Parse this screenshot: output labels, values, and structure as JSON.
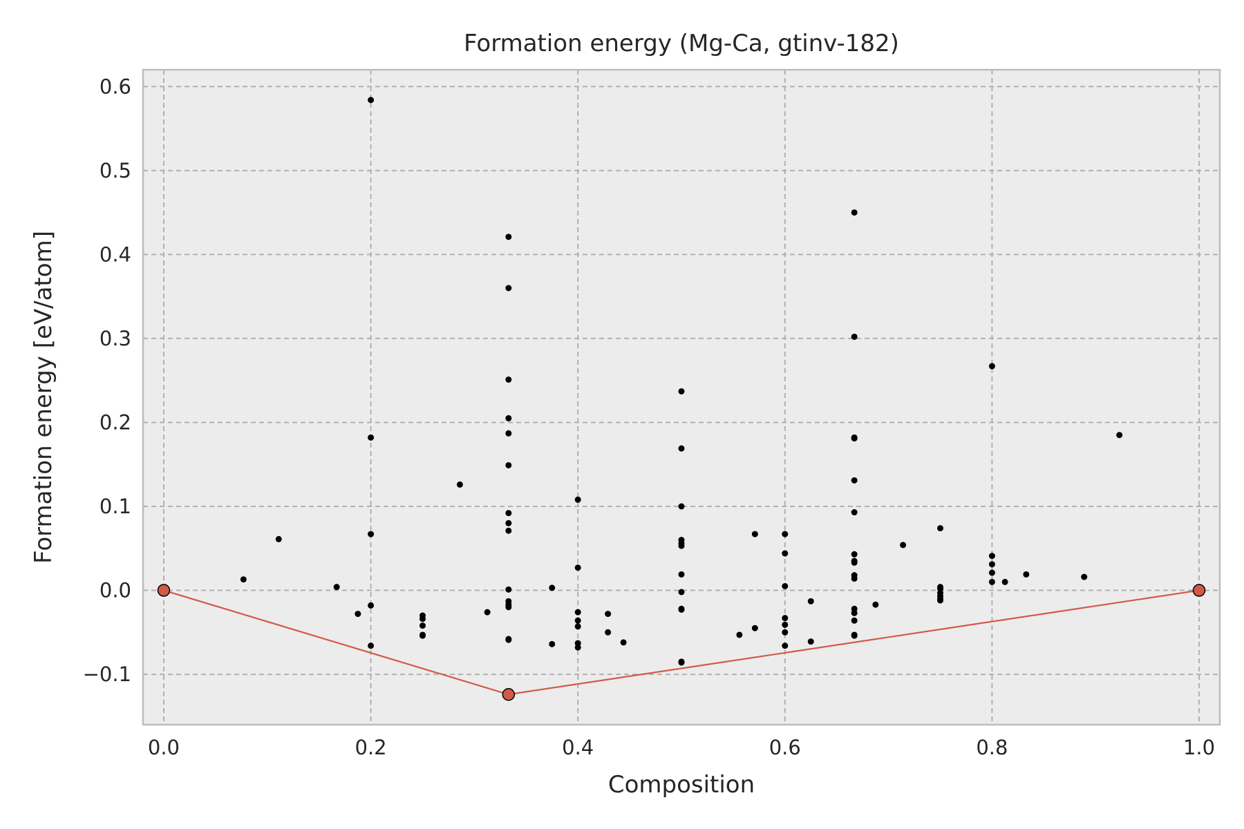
{
  "chart_data": {
    "type": "scatter",
    "title": "Formation energy (Mg-Ca, gtinv-182)",
    "xlabel": "Composition",
    "ylabel": "Formation energy [eV/atom]",
    "xlim": [
      -0.02,
      1.02
    ],
    "ylim": [
      -0.16,
      0.62
    ],
    "x_ticks": [
      0.0,
      0.2,
      0.4,
      0.6,
      0.8,
      1.0
    ],
    "x_tick_labels": [
      "0.0",
      "0.2",
      "0.4",
      "0.6",
      "0.8",
      "1.0"
    ],
    "y_ticks": [
      -0.1,
      0.0,
      0.1,
      0.2,
      0.3,
      0.4,
      0.5,
      0.6
    ],
    "y_tick_labels": [
      "−0.1",
      "0.0",
      "0.1",
      "0.2",
      "0.3",
      "0.4",
      "0.5",
      "0.6"
    ],
    "grid": true,
    "colors": {
      "background": "#ececec",
      "grid": "#b0b0b0",
      "points": "#000000",
      "hull": "#d1594a"
    },
    "series": [
      {
        "role": "structures",
        "points": [
          [
            0.077,
            0.013
          ],
          [
            0.111,
            0.061
          ],
          [
            0.167,
            0.004
          ],
          [
            0.1875,
            -0.028
          ],
          [
            0.2,
            0.584
          ],
          [
            0.2,
            0.182
          ],
          [
            0.2,
            0.067
          ],
          [
            0.2,
            -0.018
          ],
          [
            0.2,
            -0.066
          ],
          [
            0.25,
            -0.03
          ],
          [
            0.25,
            -0.034
          ],
          [
            0.25,
            -0.042
          ],
          [
            0.25,
            -0.053
          ],
          [
            0.25,
            -0.054
          ],
          [
            0.286,
            0.126
          ],
          [
            0.3125,
            -0.026
          ],
          [
            0.333,
            0.421
          ],
          [
            0.333,
            0.36
          ],
          [
            0.333,
            0.251
          ],
          [
            0.333,
            0.205
          ],
          [
            0.333,
            0.187
          ],
          [
            0.333,
            0.149
          ],
          [
            0.333,
            0.092
          ],
          [
            0.333,
            0.08
          ],
          [
            0.333,
            0.071
          ],
          [
            0.333,
            0.001
          ],
          [
            0.333,
            -0.013
          ],
          [
            0.333,
            -0.017
          ],
          [
            0.333,
            -0.02
          ],
          [
            0.333,
            -0.058
          ],
          [
            0.333,
            -0.059
          ],
          [
            0.375,
            0.003
          ],
          [
            0.375,
            -0.064
          ],
          [
            0.4,
            0.108
          ],
          [
            0.4,
            0.027
          ],
          [
            0.4,
            -0.026
          ],
          [
            0.4,
            -0.036
          ],
          [
            0.4,
            -0.043
          ],
          [
            0.4,
            -0.063
          ],
          [
            0.4,
            -0.068
          ],
          [
            0.429,
            -0.028
          ],
          [
            0.429,
            -0.05
          ],
          [
            0.444,
            -0.062
          ],
          [
            0.5,
            0.237
          ],
          [
            0.5,
            0.169
          ],
          [
            0.5,
            0.1
          ],
          [
            0.5,
            0.06
          ],
          [
            0.5,
            0.056
          ],
          [
            0.5,
            0.053
          ],
          [
            0.5,
            0.019
          ],
          [
            0.5,
            -0.002
          ],
          [
            0.5,
            -0.022
          ],
          [
            0.5,
            -0.023
          ],
          [
            0.5,
            -0.085
          ],
          [
            0.5,
            -0.086
          ],
          [
            0.556,
            -0.053
          ],
          [
            0.571,
            0.067
          ],
          [
            0.571,
            -0.045
          ],
          [
            0.6,
            0.067
          ],
          [
            0.6,
            0.044
          ],
          [
            0.6,
            0.005
          ],
          [
            0.6,
            -0.033
          ],
          [
            0.6,
            -0.041
          ],
          [
            0.6,
            -0.05
          ],
          [
            0.6,
            -0.066
          ],
          [
            0.625,
            -0.013
          ],
          [
            0.625,
            -0.061
          ],
          [
            0.667,
            0.45
          ],
          [
            0.667,
            0.302
          ],
          [
            0.667,
            0.182
          ],
          [
            0.667,
            0.181
          ],
          [
            0.667,
            0.131
          ],
          [
            0.667,
            0.093
          ],
          [
            0.667,
            0.043
          ],
          [
            0.667,
            0.035
          ],
          [
            0.667,
            0.033
          ],
          [
            0.667,
            0.018
          ],
          [
            0.667,
            0.014
          ],
          [
            0.667,
            -0.022
          ],
          [
            0.667,
            -0.027
          ],
          [
            0.667,
            -0.036
          ],
          [
            0.667,
            -0.053
          ],
          [
            0.667,
            -0.054
          ],
          [
            0.6875,
            -0.017
          ],
          [
            0.714,
            0.054
          ],
          [
            0.75,
            0.074
          ],
          [
            0.75,
            0.004
          ],
          [
            0.75,
            0.002
          ],
          [
            0.75,
            -0.003
          ],
          [
            0.75,
            -0.007
          ],
          [
            0.75,
            -0.01
          ],
          [
            0.75,
            -0.012
          ],
          [
            0.8,
            0.267
          ],
          [
            0.8,
            0.041
          ],
          [
            0.8,
            0.031
          ],
          [
            0.8,
            0.021
          ],
          [
            0.8,
            0.01
          ],
          [
            0.8125,
            0.01
          ],
          [
            0.833,
            0.019
          ],
          [
            0.889,
            0.016
          ],
          [
            0.923,
            0.185
          ]
        ]
      },
      {
        "role": "convex-hull",
        "points": [
          [
            0.0,
            0.0
          ],
          [
            0.333,
            -0.124
          ],
          [
            1.0,
            0.0
          ]
        ]
      }
    ]
  }
}
